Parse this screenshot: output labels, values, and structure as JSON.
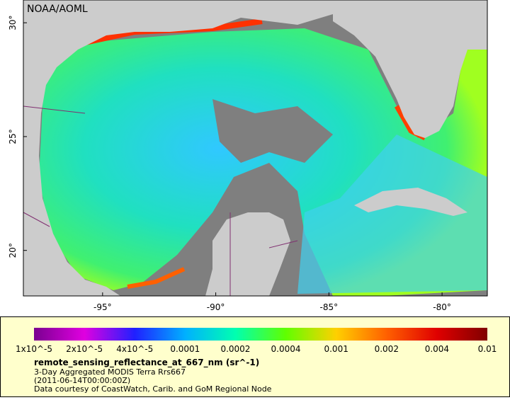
{
  "map": {
    "credit": "NOAA/AOML",
    "xlim": [
      -98.5,
      -78
    ],
    "ylim": [
      18,
      31
    ],
    "xticks": [
      {
        "value": -95,
        "label": "-95°"
      },
      {
        "value": -90,
        "label": "-90°"
      },
      {
        "value": -85,
        "label": "-85°"
      },
      {
        "value": -80,
        "label": "-80°"
      }
    ],
    "yticks": [
      {
        "value": 30,
        "label": "30°"
      },
      {
        "value": 25,
        "label": "25°"
      },
      {
        "value": 20,
        "label": "20°"
      }
    ]
  },
  "colorbar": {
    "colors": [
      "#7a0090",
      "#e000e0",
      "#2020ff",
      "#00b0ff",
      "#00ffb0",
      "#60ff00",
      "#ffd000",
      "#ff6000",
      "#e00000",
      "#800000"
    ],
    "ticks": [
      "1x10^-5",
      "2x10^-5",
      "4x10^-5",
      "0.0001",
      "0.0002",
      "0.0004",
      "0.001",
      "0.002",
      "0.004",
      "0.01"
    ]
  },
  "caption": {
    "title": "remote_sensing_reflectance_at_667_nm (sr^-1)",
    "lines": [
      "3-Day Aggregated MODIS Terra Rrs667",
      "(2011-06-14T00:00:00Z)",
      "Data courtesy of CoastWatch, Carib. and GoM Regional Node"
    ]
  }
}
